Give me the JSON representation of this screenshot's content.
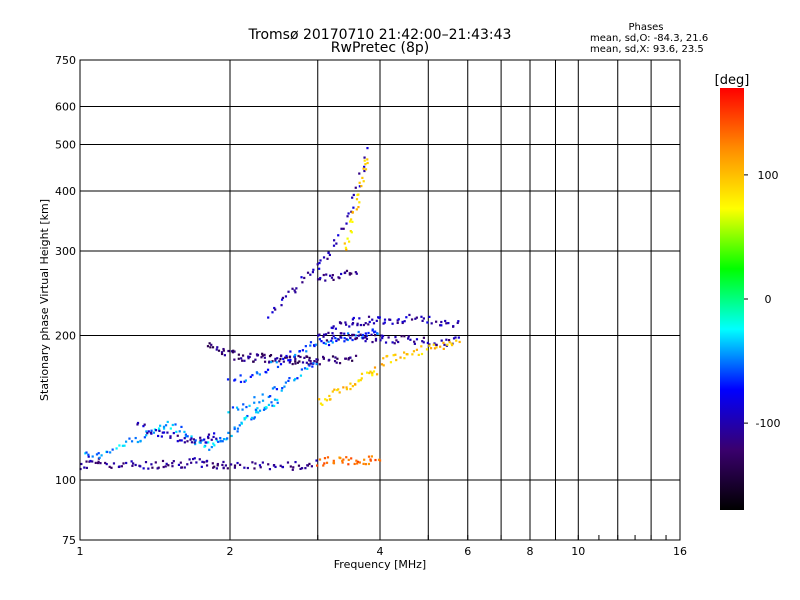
{
  "chart_data": {
    "type": "scatter",
    "title": "Tromsø 20170710 21:42:00–21:43:43",
    "subtitle": "RwPretec (8p)",
    "xlabel": "Frequency [MHz]",
    "ylabel": "Stationary phase Virtual Height [km]",
    "x_scale": "log",
    "y_scale": "log",
    "xlim": [
      1,
      16
    ],
    "ylim": [
      75,
      750
    ],
    "x_ticks": [
      1,
      2,
      4,
      6,
      8,
      10,
      16
    ],
    "x_tick_labels": [
      "1",
      "2",
      "4",
      "6",
      "8",
      "10",
      "16"
    ],
    "x_minor_gridlines": [
      3,
      5,
      7,
      9,
      12,
      14
    ],
    "y_ticks": [
      75,
      100,
      200,
      300,
      400,
      500,
      600,
      750
    ],
    "y_tick_labels": [
      "75",
      "100",
      "200",
      "300",
      "400",
      "500",
      "600",
      "750"
    ],
    "grid": true,
    "colorbar": {
      "label": "[deg]",
      "ticks": [
        100,
        0,
        -100
      ],
      "tick_labels": [
        "100",
        "0",
        "-100"
      ],
      "range": [
        -170,
        170
      ],
      "colors": [
        "#000000",
        "#3a006e",
        "#0000ff",
        "#00ffff",
        "#00ff00",
        "#ffff00",
        "#ff8c00",
        "#ff0000"
      ]
    },
    "phases_legend": {
      "heading": "Phases",
      "o_line": "mean, sd,O: -84.3, 21.6",
      "x_line": "mean, sd,X:  93.6, 23.5"
    },
    "series": [
      {
        "traces": [
          {
            "f": [
              1.0,
              1.05,
              1.1,
              1.2,
              1.3,
              1.4,
              1.5,
              1.6,
              1.7,
              1.8,
              1.9,
              2.0,
              2.2,
              2.4,
              2.6,
              2.8,
              3.0
            ],
            "h": [
              105,
              110,
              109,
              107,
              108,
              107,
              109,
              108,
              109,
              108,
              107,
              108,
              107,
              107,
              107,
              107,
              108
            ],
            "phase": -110
          },
          {
            "f": [
              1.0,
              1.1,
              1.2,
              1.3,
              1.4,
              1.5,
              1.6,
              1.7,
              1.8,
              1.9,
              2.0,
              2.1,
              2.2,
              2.3,
              2.4,
              2.5
            ],
            "h": [
              112,
              113,
              118,
              122,
              126,
              130,
              128,
              120,
              118,
              120,
              125,
              130,
              136,
              140,
              144,
              148
            ],
            "phase": -40
          },
          {
            "f": [
              1.3,
              1.4,
              1.5,
              1.6,
              1.7,
              1.8,
              1.9
            ],
            "h": [
              130,
              126,
              124,
              122,
              121,
              122,
              124
            ],
            "phase": -100
          },
          {
            "f": [
              1.8,
              1.9,
              2.0,
              2.1,
              2.2,
              2.3,
              2.4,
              2.5,
              2.6,
              2.7,
              2.8,
              2.9,
              3.0,
              3.2,
              3.4,
              3.6
            ],
            "h": [
              190,
              186,
              183,
              181,
              180,
              180,
              179,
              179,
              178,
              178,
              178,
              177,
              177,
              178,
              178,
              179
            ],
            "phase": -120
          },
          {
            "f": [
              2.0,
              2.2,
              2.4,
              2.6,
              2.8,
              3.0,
              3.2,
              3.4,
              3.6,
              3.8,
              4.0
            ],
            "h": [
              160,
              165,
              172,
              180,
              188,
              192,
              195,
              198,
              200,
              202,
              205
            ],
            "phase": -60
          },
          {
            "f": [
              2.0,
              2.2,
              2.4,
              2.6,
              2.8,
              3.0
            ],
            "h": [
              138,
              145,
              152,
              160,
              168,
              175
            ],
            "phase": -50
          },
          {
            "f": [
              3.0,
              3.2,
              3.4,
              3.6,
              3.8,
              4.0,
              4.3,
              4.6,
              5.0,
              5.4,
              5.8
            ],
            "h": [
              198,
              200,
              200,
              199,
              198,
              197,
              196,
              196,
              195,
              194,
              195
            ],
            "phase": -110
          },
          {
            "f": [
              3.2,
              3.4,
              3.6,
              3.8,
              4.0,
              4.3,
              4.6,
              5.0,
              5.4,
              5.8
            ],
            "h": [
              210,
              212,
              214,
              215,
              216,
              216,
              217,
              215,
              214,
              212
            ],
            "phase": -100
          },
          {
            "f": [
              3.0,
              3.2,
              3.4,
              3.6,
              3.8,
              4.0
            ],
            "h": [
              145,
              150,
              155,
              160,
              166,
              170
            ],
            "phase": 95
          },
          {
            "f": [
              4.0,
              4.3,
              4.6,
              5.0,
              5.4,
              5.8
            ],
            "h": [
              176,
              180,
              184,
              188,
              190,
              192
            ],
            "phase": 100
          },
          {
            "f": [
              3.0,
              3.2,
              3.4,
              3.6,
              3.8,
              4.0
            ],
            "h": [
              108,
              110,
              110,
              109,
              110,
              110
            ],
            "phase": 130
          },
          {
            "f": [
              3.0,
              3.2,
              3.4,
              3.6
            ],
            "h": [
              260,
              265,
              268,
              270
            ],
            "phase": -110
          },
          {
            "f": [
              2.4,
              2.6,
              2.8,
              3.0,
              3.2,
              3.4,
              3.6,
              3.8
            ],
            "h": [
              220,
              240,
              260,
              280,
              300,
              340,
              400,
              500
            ],
            "phase": -100
          },
          {
            "f": [
              3.4,
              3.5,
              3.6,
              3.7,
              3.8
            ],
            "h": [
              300,
              340,
              380,
              430,
              480
            ],
            "phase": 90
          }
        ]
      }
    ]
  }
}
